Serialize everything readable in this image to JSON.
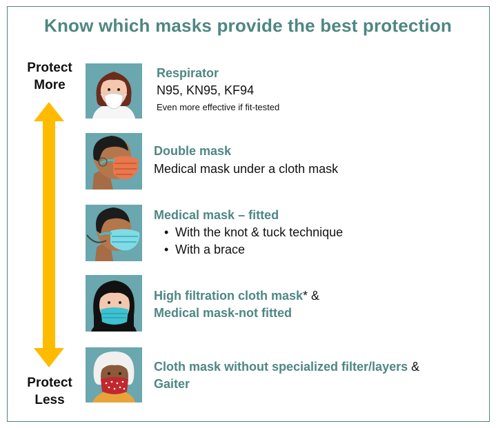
{
  "title": "Know which masks provide the best protection",
  "scale": {
    "top_label_line1": "Protect",
    "top_label_line2": "More",
    "bottom_label_line1": "Protect",
    "bottom_label_line2": "Less",
    "arrow_color": "#ffbb00"
  },
  "colors": {
    "heading": "#4e8783",
    "tile_bg": "#6aa7ae",
    "border": "#4e7f7c"
  },
  "items": [
    {
      "icon": "respirator-icon",
      "heading": "Respirator",
      "line": "N95, KN95, KF94",
      "note": "Even more effective if fit-tested"
    },
    {
      "icon": "double-mask-icon",
      "heading": "Double mask",
      "line": "Medical mask under a cloth mask"
    },
    {
      "icon": "medical-mask-fitted-icon",
      "heading": "Medical mask – fitted",
      "bullets": [
        "With the knot & tuck technique",
        "With a brace"
      ]
    },
    {
      "icon": "high-filtration-mask-icon",
      "heading": "High filtration cloth mask",
      "asterisk": "*",
      "amp": " &",
      "heading2": "Medical mask-not fitted"
    },
    {
      "icon": "cloth-mask-icon",
      "heading": "Cloth mask without specialized filter/layers",
      "amp": " &",
      "heading2": "Gaiter"
    }
  ]
}
